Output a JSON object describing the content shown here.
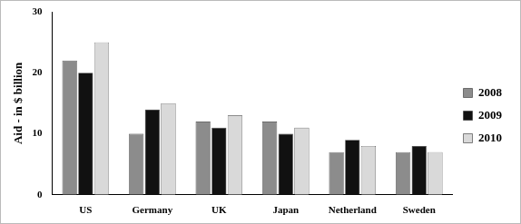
{
  "chart_data": {
    "type": "bar",
    "y_label": "Aid - in $ billion",
    "categories": [
      "US",
      "Germany",
      "UK",
      "Japan",
      "Netherland",
      "Sweden"
    ],
    "series": [
      {
        "name": "2008",
        "color": "#8c8c8c",
        "values": [
          22,
          10,
          12,
          12,
          7,
          7
        ]
      },
      {
        "name": "2009",
        "color": "#111111",
        "values": [
          20,
          14,
          11,
          10,
          9,
          8
        ]
      },
      {
        "name": "2010",
        "color": "#d9d9d9",
        "values": [
          25,
          15,
          13,
          11,
          8,
          7
        ]
      }
    ],
    "ylim": [
      0,
      30
    ],
    "yticks": [
      0,
      10,
      20,
      30
    ],
    "grid": false,
    "legend": "right"
  }
}
